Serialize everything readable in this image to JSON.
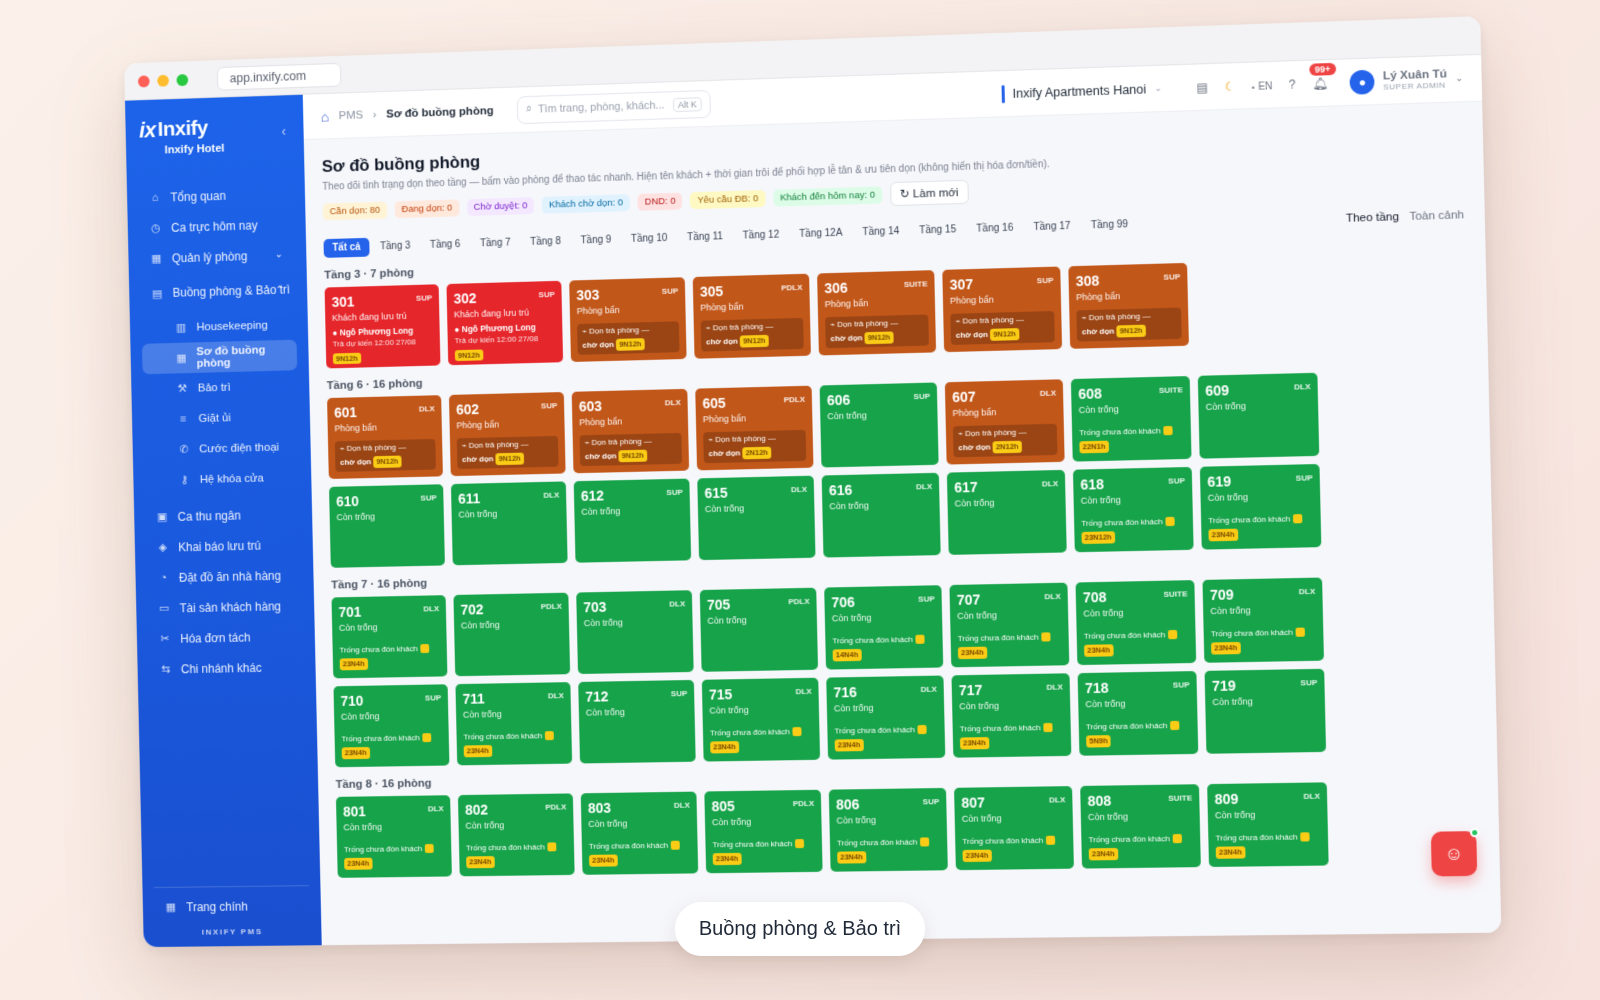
{
  "browser": {
    "url": "app.inxify.com"
  },
  "sidebar": {
    "logo": "Inxify",
    "logo_mark": "ix",
    "hotel": "Inxify Hotel",
    "items": [
      {
        "label": "Tổng quan",
        "icon": "home-icon",
        "glyph": "⌂"
      },
      {
        "label": "Ca trực hôm nay",
        "icon": "clock-icon",
        "glyph": "◷"
      },
      {
        "label": "Quản lý phòng",
        "icon": "grid-icon",
        "glyph": "▦"
      },
      {
        "label": "Buồng phòng & Bảo trì",
        "icon": "building-icon",
        "glyph": "▤"
      },
      {
        "label": "Housekeeping",
        "icon": "housekeeping-icon",
        "glyph": "▥"
      },
      {
        "label": "Sơ đồ buồng phòng",
        "icon": "grid-icon",
        "glyph": "▦"
      },
      {
        "label": "Bảo trì",
        "icon": "wrench-icon",
        "glyph": "⚒"
      },
      {
        "label": "Giặt ủi",
        "icon": "list-icon",
        "glyph": "≡"
      },
      {
        "label": "Cước điện thoại",
        "icon": "phone-icon",
        "glyph": "✆"
      },
      {
        "label": "Hệ khóa cửa",
        "icon": "key-icon",
        "glyph": "⚷"
      },
      {
        "label": "Ca thu ngân",
        "icon": "cashier-icon",
        "glyph": "▣"
      },
      {
        "label": "Khai báo lưu trú",
        "icon": "shield-icon",
        "glyph": "◈"
      },
      {
        "label": "Đặt đồ ăn nhà hàng",
        "icon": "food-icon",
        "glyph": "◔"
      },
      {
        "label": "Tài sản khách hàng",
        "icon": "wallet-icon",
        "glyph": "▭"
      },
      {
        "label": "Hóa đơn tách",
        "icon": "scissors-icon",
        "glyph": "✂"
      },
      {
        "label": "Chi nhánh khác",
        "icon": "branch-icon",
        "glyph": "⇆"
      }
    ],
    "footer": {
      "label": "Trang chính",
      "brand": "INXIFY PMS"
    }
  },
  "topbar": {
    "crumb_root": "PMS",
    "crumb_current": "Sơ đồ buồng phòng",
    "search_placeholder": "Tìm trang, phòng, khách...",
    "search_kbd": "Alt K",
    "property": "Inxify Apartments Hanoi",
    "lang": "EN",
    "notif_badge": "99+",
    "user_name": "Lý Xuân Tú",
    "user_role": "SUPER ADMIN"
  },
  "page": {
    "title": "Sơ đồ buồng phòng",
    "description": "Theo dõi tình trạng dọn theo tầng — bấm vào phòng để thao tác nhanh. Hiện tên khách + thời gian trôi để phối hợp lễ tân & ưu tiên dọn (không hiển thị hóa đơn/tiền).",
    "stats": [
      {
        "label": "Cần dọn: 80",
        "bg": "#fff3d6",
        "fg": "#b45309"
      },
      {
        "label": "Đang dọn: 0",
        "bg": "#ffe8dc",
        "fg": "#c2410c"
      },
      {
        "label": "Chờ duyệt: 0",
        "bg": "#f3e8ff",
        "fg": "#7e22ce"
      },
      {
        "label": "Khách chờ dọn: 0",
        "bg": "#e0f2fe",
        "fg": "#0369a1"
      },
      {
        "label": "DND: 0",
        "bg": "#fee2e2",
        "fg": "#b91c1c"
      },
      {
        "label": "Yêu cầu ĐB: 0",
        "bg": "#fef9c3",
        "fg": "#a16207"
      },
      {
        "label": "Khách đến hôm nay: 0",
        "bg": "#dcfce7",
        "fg": "#15803d"
      }
    ],
    "refresh": "Làm mới",
    "view_by_floor": "Theo tầng",
    "view_overview": "Toàn cảnh",
    "floor_tabs": [
      "Tất cả",
      "Tầng 3",
      "Tầng 6",
      "Tầng 7",
      "Tầng 8",
      "Tầng 9",
      "Tầng 10",
      "Tầng 11",
      "Tầng 12",
      "Tầng 12A",
      "Tầng 14",
      "Tầng 15",
      "Tầng 16",
      "Tầng 17",
      "Tầng 99"
    ]
  },
  "floors": [
    {
      "title": "Tầng 3 · 7 phòng",
      "rooms": [
        {
          "num": "301",
          "type": "SUP",
          "color": "red",
          "status": "Khách đang lưu trú",
          "guest": "Ngô Phương Long",
          "due": "Trả dự kiến 12:00 27/08",
          "chip": "9N12h"
        },
        {
          "num": "302",
          "type": "SUP",
          "color": "red",
          "status": "Khách đang lưu trú",
          "guest": "Ngô Phương Long",
          "due": "Trả dự kiến 12:00 27/08",
          "chip": "9N12h"
        },
        {
          "num": "303",
          "type": "SUP",
          "color": "orange",
          "status": "Phòng bẩn",
          "task": "Dọn trả phòng —",
          "task2": "chờ dọn",
          "chip": "9N12h"
        },
        {
          "num": "305",
          "type": "PDLX",
          "color": "orange",
          "status": "Phòng bẩn",
          "task": "Dọn trả phòng —",
          "task2": "chờ dọn",
          "chip": "9N12h"
        },
        {
          "num": "306",
          "type": "SUITE",
          "color": "orange",
          "status": "Phòng bẩn",
          "task": "Dọn trả phòng —",
          "task2": "chờ dọn",
          "chip": "9N12h"
        },
        {
          "num": "307",
          "type": "SUP",
          "color": "orange",
          "status": "Phòng bẩn",
          "task": "Dọn trả phòng —",
          "task2": "chờ dọn",
          "chip": "9N12h"
        },
        {
          "num": "308",
          "type": "SUP",
          "color": "orange",
          "status": "Phòng bẩn",
          "task": "Dọn trả phòng —",
          "task2": "chờ dọn",
          "chip": "9N12h"
        }
      ]
    },
    {
      "title": "Tầng 6 · 16 phòng",
      "rooms": [
        {
          "num": "601",
          "type": "DLX",
          "color": "orange",
          "status": "Phòng bẩn",
          "task": "Dọn trả phòng —",
          "task2": "chờ dọn",
          "chip": "9N12h"
        },
        {
          "num": "602",
          "type": "SUP",
          "color": "orange",
          "status": "Phòng bẩn",
          "task": "Dọn trả phòng —",
          "task2": "chờ dọn",
          "chip": "9N12h"
        },
        {
          "num": "603",
          "type": "DLX",
          "color": "orange",
          "status": "Phòng bẩn",
          "task": "Dọn trả phòng —",
          "task2": "chờ dọn",
          "chip": "9N12h"
        },
        {
          "num": "605",
          "type": "PDLX",
          "color": "orange",
          "status": "Phòng bẩn",
          "task": "Dọn trả phòng —",
          "task2": "chờ dọn",
          "chip": "2N12h"
        },
        {
          "num": "606",
          "type": "SUP",
          "color": "green",
          "status": "Còn trống"
        },
        {
          "num": "607",
          "type": "DLX",
          "color": "orange",
          "status": "Phòng bẩn",
          "task": "Dọn trả phòng —",
          "task2": "chờ dọn",
          "chip": "2N12h"
        },
        {
          "num": "608",
          "type": "SUITE",
          "color": "green",
          "status": "Còn trống",
          "note": "Trống chưa đón khách",
          "chip": "22N1h"
        },
        {
          "num": "609",
          "type": "DLX",
          "color": "green",
          "status": "Còn trống"
        },
        {
          "num": "610",
          "type": "SUP",
          "color": "green",
          "status": "Còn trống"
        },
        {
          "num": "611",
          "type": "DLX",
          "color": "green",
          "status": "Còn trống"
        },
        {
          "num": "612",
          "type": "SUP",
          "color": "green",
          "status": "Còn trống"
        },
        {
          "num": "615",
          "type": "DLX",
          "color": "green",
          "status": "Còn trống"
        },
        {
          "num": "616",
          "type": "DLX",
          "color": "green",
          "status": "Còn trống"
        },
        {
          "num": "617",
          "type": "DLX",
          "color": "green",
          "status": "Còn trống"
        },
        {
          "num": "618",
          "type": "SUP",
          "color": "green",
          "status": "Còn trống",
          "note": "Trống chưa đón khách",
          "chip": "23N12h"
        },
        {
          "num": "619",
          "type": "SUP",
          "color": "green",
          "status": "Còn trống",
          "note": "Trống chưa đón khách",
          "chip": "23N4h"
        }
      ]
    },
    {
      "title": "Tầng 7 · 16 phòng",
      "rooms": [
        {
          "num": "701",
          "type": "DLX",
          "color": "green",
          "status": "Còn trống",
          "note": "Trống chưa đón khách",
          "chip": "23N4h"
        },
        {
          "num": "702",
          "type": "PDLX",
          "color": "green",
          "status": "Còn trống"
        },
        {
          "num": "703",
          "type": "DLX",
          "color": "green",
          "status": "Còn trống"
        },
        {
          "num": "705",
          "type": "PDLX",
          "color": "green",
          "status": "Còn trống"
        },
        {
          "num": "706",
          "type": "SUP",
          "color": "green",
          "status": "Còn trống",
          "note": "Trống chưa đón khách",
          "chip": "14N4h"
        },
        {
          "num": "707",
          "type": "DLX",
          "color": "green",
          "status": "Còn trống",
          "note": "Trống chưa đón khách",
          "chip": "23N4h"
        },
        {
          "num": "708",
          "type": "SUITE",
          "color": "green",
          "status": "Còn trống",
          "note": "Trống chưa đón khách",
          "chip": "23N4h"
        },
        {
          "num": "709",
          "type": "DLX",
          "color": "green",
          "status": "Còn trống",
          "note": "Trống chưa đón khách",
          "chip": "23N4h"
        },
        {
          "num": "710",
          "type": "SUP",
          "color": "green",
          "status": "Còn trống",
          "note": "Trống chưa đón khách",
          "chip": "23N4h"
        },
        {
          "num": "711",
          "type": "DLX",
          "color": "green",
          "status": "Còn trống",
          "note": "Trống chưa đón khách",
          "chip": "23N4h"
        },
        {
          "num": "712",
          "type": "SUP",
          "color": "green",
          "status": "Còn trống"
        },
        {
          "num": "715",
          "type": "DLX",
          "color": "green",
          "status": "Còn trống",
          "note": "Trống chưa đón khách",
          "chip": "23N4h"
        },
        {
          "num": "716",
          "type": "DLX",
          "color": "green",
          "status": "Còn trống",
          "note": "Trống chưa đón khách",
          "chip": "23N4h"
        },
        {
          "num": "717",
          "type": "DLX",
          "color": "green",
          "status": "Còn trống",
          "note": "Trống chưa đón khách",
          "chip": "23N4h"
        },
        {
          "num": "718",
          "type": "SUP",
          "color": "green",
          "status": "Còn trống",
          "note": "Trống chưa đón khách",
          "chip": "5N9h"
        },
        {
          "num": "719",
          "type": "SUP",
          "color": "green",
          "status": "Còn trống"
        }
      ]
    },
    {
      "title": "Tầng 8 · 16 phòng",
      "rooms": [
        {
          "num": "801",
          "type": "DLX",
          "color": "green",
          "status": "Còn trống",
          "note": "Trống chưa đón khách",
          "chip": "23N4h"
        },
        {
          "num": "802",
          "type": "PDLX",
          "color": "green",
          "status": "Còn trống",
          "note": "Trống chưa đón khách",
          "chip": "23N4h"
        },
        {
          "num": "803",
          "type": "DLX",
          "color": "green",
          "status": "Còn trống",
          "note": "Trống chưa đón khách",
          "chip": "23N4h"
        },
        {
          "num": "805",
          "type": "PDLX",
          "color": "green",
          "status": "Còn trống",
          "note": "Trống chưa đón khách",
          "chip": "23N4h"
        },
        {
          "num": "806",
          "type": "SUP",
          "color": "green",
          "status": "Còn trống",
          "note": "Trống chưa đón khách",
          "chip": "23N4h"
        },
        {
          "num": "807",
          "type": "DLX",
          "color": "green",
          "status": "Còn trống",
          "note": "Trống chưa đón khách",
          "chip": "23N4h"
        },
        {
          "num": "808",
          "type": "SUITE",
          "color": "green",
          "status": "Còn trống",
          "note": "Trống chưa đón khách",
          "chip": "23N4h"
        },
        {
          "num": "809",
          "type": "DLX",
          "color": "green",
          "status": "Còn trống",
          "note": "Trống chưa đón khách",
          "chip": "23N4h"
        }
      ]
    }
  ],
  "caption": "Buồng phòng & Bảo trì",
  "colors": {
    "sidebar": "#1d63e9",
    "room_occupied": "#e5262b",
    "room_dirty": "#c2571a",
    "room_vacant": "#17a34a",
    "accent": "#2563eb"
  }
}
